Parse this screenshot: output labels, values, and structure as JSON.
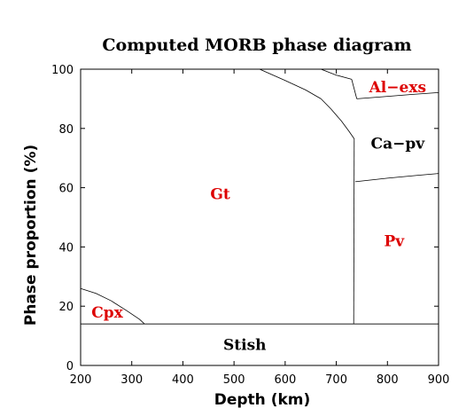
{
  "chart_data": {
    "type": "area",
    "title": "Computed MORB phase diagram",
    "xlabel": "Depth (km)",
    "ylabel": "Phase proportion (%)",
    "xlim": [
      200,
      900
    ],
    "ylim": [
      0,
      100
    ],
    "xticks": [
      200,
      300,
      400,
      500,
      600,
      700,
      800,
      900
    ],
    "yticks": [
      0,
      20,
      40,
      60,
      80,
      100
    ],
    "grid": false,
    "legend": "none",
    "regions": [
      {
        "name": "Stish",
        "label_at": [
          521,
          7
        ],
        "color": "#000000"
      },
      {
        "name": "Cpx",
        "label_at": [
          252,
          18
        ],
        "color": "#dd0000"
      },
      {
        "name": "Gt",
        "label_at": [
          473,
          58
        ],
        "color": "#dd0000"
      },
      {
        "name": "Pv",
        "label_at": [
          813,
          42
        ],
        "color": "#dd0000"
      },
      {
        "name": "Ca−pv",
        "label_at": [
          820,
          75
        ],
        "color": "#000000"
      },
      {
        "name": "Al−exs",
        "label_at": [
          820,
          94
        ],
        "color": "#dd0000"
      }
    ],
    "boundaries": [
      {
        "id": "stish-top",
        "points": [
          [
            200,
            14
          ],
          [
            900,
            14
          ]
        ]
      },
      {
        "id": "cpx-gt",
        "points": [
          [
            200,
            26
          ],
          [
            230,
            24.3
          ],
          [
            260,
            21.8
          ],
          [
            290,
            18.5
          ],
          [
            315,
            15.6
          ],
          [
            325,
            14
          ]
        ]
      },
      {
        "id": "gt-top",
        "points": [
          [
            550,
            100
          ],
          [
            600,
            96.2
          ],
          [
            640,
            93
          ],
          [
            670,
            90
          ]
        ]
      },
      {
        "id": "gt-capv",
        "points": [
          [
            670,
            90
          ],
          [
            690,
            86.5
          ],
          [
            710,
            82.5
          ],
          [
            725,
            79
          ],
          [
            735,
            76.5
          ]
        ]
      },
      {
        "id": "gt-pv",
        "points": [
          [
            735,
            76.5
          ],
          [
            734,
            14
          ]
        ]
      },
      {
        "id": "pv-capv",
        "points": [
          [
            737,
            62
          ],
          [
            800,
            63.2
          ],
          [
            860,
            64.2
          ],
          [
            900,
            64.8
          ]
        ]
      },
      {
        "id": "capv-alexs",
        "points": [
          [
            740,
            90
          ],
          [
            790,
            90.7
          ],
          [
            850,
            91.5
          ],
          [
            900,
            92.1
          ]
        ]
      },
      {
        "id": "alexs-left",
        "points": [
          [
            670,
            100
          ],
          [
            700,
            98
          ],
          [
            730,
            96.6
          ]
        ]
      },
      {
        "id": "alexs-left2",
        "points": [
          [
            730,
            96.6
          ],
          [
            740,
            90
          ]
        ]
      }
    ]
  }
}
